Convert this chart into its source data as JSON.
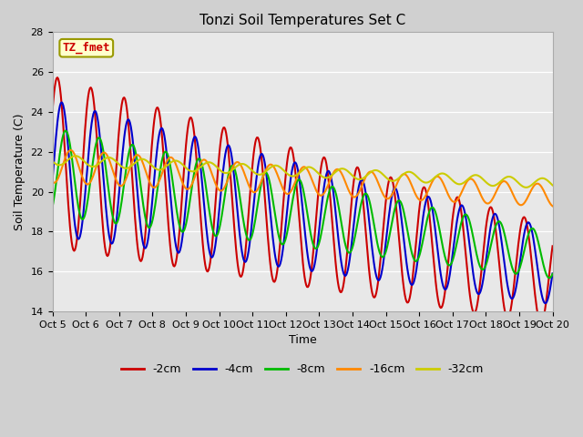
{
  "title": "Tonzi Soil Temperatures Set C",
  "xlabel": "Time",
  "ylabel": "Soil Temperature (C)",
  "ylim": [
    14,
    28
  ],
  "xlim": [
    0,
    15
  ],
  "x_tick_labels": [
    "Oct 5",
    "Oct 6",
    "Oct 7",
    "Oct 8",
    "Oct 9",
    "Oct 10",
    "Oct 11",
    "Oct 12",
    "Oct 13",
    "Oct 14",
    "Oct 15",
    "Oct 16",
    "Oct 17",
    "Oct 18",
    "Oct 19",
    "Oct 20"
  ],
  "yticks": [
    14,
    16,
    18,
    20,
    22,
    24,
    26,
    28
  ],
  "colors": {
    "-2cm": "#cc0000",
    "-4cm": "#0000cc",
    "-8cm": "#00bb00",
    "-16cm": "#ff8800",
    "-32cm": "#cccc00"
  },
  "annotation_text": "TZ_fmet",
  "annotation_color": "#cc0000",
  "annotation_bg": "#ffffcc",
  "annotation_edge": "#999900",
  "fig_bg_color": "#d0d0d0",
  "plot_bg_color": "#e8e8e8",
  "title_fontsize": 11,
  "axis_label_fontsize": 9,
  "tick_fontsize": 8,
  "legend_fontsize": 9,
  "linewidth": 1.5
}
